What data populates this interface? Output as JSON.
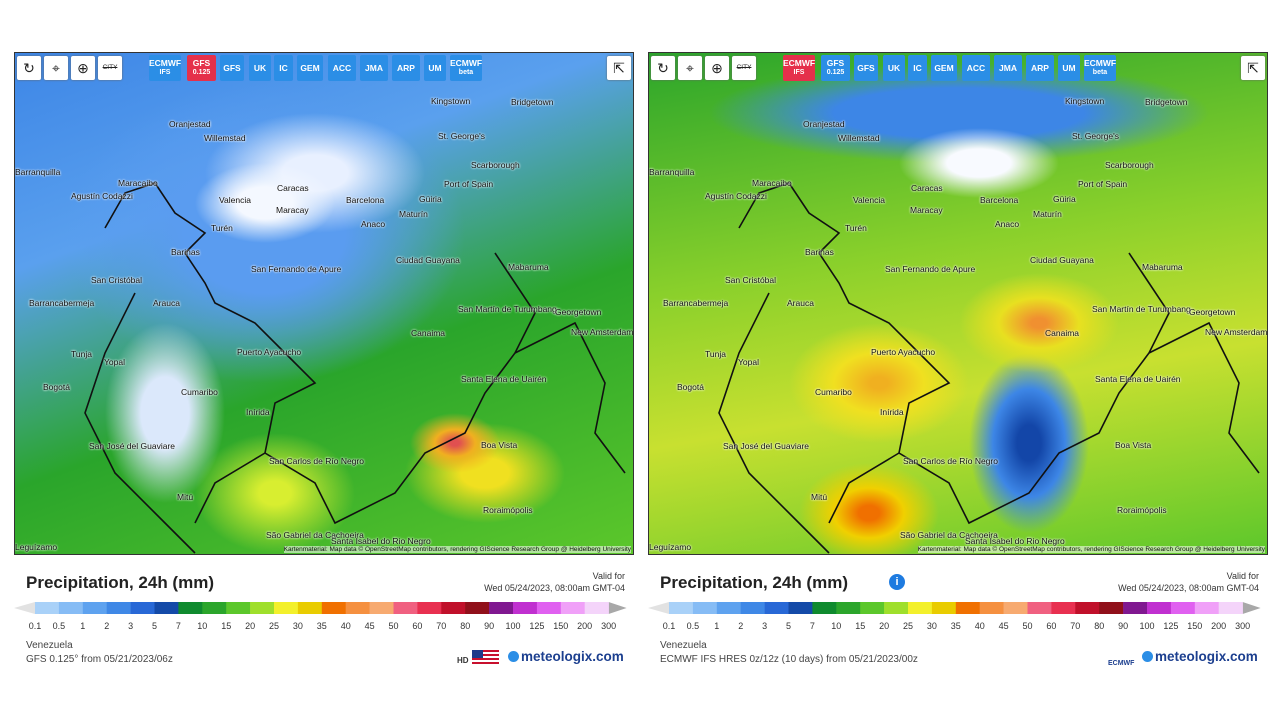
{
  "panels": [
    {
      "toolbar": {
        "city": "CITY",
        "models": [
          {
            "lines": [
              "ECMWF",
              "IFS"
            ],
            "active": false
          },
          {
            "lines": [
              "GFS",
              "0.125"
            ],
            "active": true
          },
          {
            "lines": [
              "GFS"
            ],
            "active": false
          },
          {
            "lines": [
              "UK"
            ],
            "active": false
          },
          {
            "lines": [
              "IC"
            ],
            "active": false
          },
          {
            "lines": [
              "GEM"
            ],
            "active": false
          },
          {
            "lines": [
              "ACC"
            ],
            "active": false
          },
          {
            "lines": [
              "JMA"
            ],
            "active": false
          },
          {
            "lines": [
              "ARP"
            ],
            "active": false
          },
          {
            "lines": [
              "UM"
            ],
            "active": false
          },
          {
            "lines": [
              "ECMWF",
              "beta"
            ],
            "active": false
          }
        ]
      },
      "cities": [
        "Oranjestad",
        "Willemstad",
        "Kingstown",
        "Bridgetown",
        "St. George's",
        "Scarborough",
        "Port of Spain",
        "Barranquilla",
        "Maracaibo",
        "Caracas",
        "Barcelona",
        "Güiria",
        "Agustín Codazzi",
        "Valencia",
        "Maracay",
        "Maturín",
        "Anaco",
        "Turén",
        "Barinas",
        "Ciudad Guayana",
        "Mabaruma",
        "San Fernando de Apure",
        "San Cristóbal",
        "Arauca",
        "Barrancabermeja",
        "San Martín de Turumbang",
        "Georgetown",
        "Canaima",
        "New Amsterdam",
        "Puerto Ayacucho",
        "Tunja",
        "Yopal",
        "Bogotá",
        "Cumaribo",
        "Santa Elena de Uairén",
        "Inírida",
        "Boa Vista",
        "San José del Guaviare",
        "San Carlos de Río Negro",
        "Mitú",
        "Roraimópolis",
        "São Gabriel da Cachoeira",
        "Santa Isabel do Rio Negro",
        "Leguízamo"
      ],
      "attribution": "Kartenmaterial: Map data © OpenStreetMap contributors, rendering GIScience Research Group @ Heidelberg University",
      "title": "Precipitation, 24h (mm)",
      "info_icon": false,
      "valid_label": "Valid for",
      "valid_time": "Wed 05/24/2023, 08:00am GMT-04",
      "region": "Venezuela",
      "model_info": "GFS 0.125° from 05/21/2023/06z",
      "badge": "HD",
      "brand": "meteologix.com"
    },
    {
      "toolbar": {
        "city": "CITY",
        "models": [
          {
            "lines": [
              "ECMWF",
              "IFS"
            ],
            "active": true
          },
          {
            "lines": [
              "GFS",
              "0.125"
            ],
            "active": false
          },
          {
            "lines": [
              "GFS"
            ],
            "active": false
          },
          {
            "lines": [
              "UK"
            ],
            "active": false
          },
          {
            "lines": [
              "IC"
            ],
            "active": false
          },
          {
            "lines": [
              "GEM"
            ],
            "active": false
          },
          {
            "lines": [
              "ACC"
            ],
            "active": false
          },
          {
            "lines": [
              "JMA"
            ],
            "active": false
          },
          {
            "lines": [
              "ARP"
            ],
            "active": false
          },
          {
            "lines": [
              "UM"
            ],
            "active": false
          },
          {
            "lines": [
              "ECMWF",
              "beta"
            ],
            "active": false
          }
        ]
      },
      "cities": [
        "Oranjestad",
        "Willemstad",
        "Kingstown",
        "Bridgetown",
        "St. George's",
        "Scarborough",
        "Port of Spain",
        "Barranquilla",
        "Maracaibo",
        "Caracas",
        "Barcelona",
        "Güiria",
        "Agustín Codazzi",
        "Valencia",
        "Maracay",
        "Maturín",
        "Anaco",
        "Turén",
        "Barinas",
        "Ciudad Guayana",
        "Mabaruma",
        "San Fernando de Apure",
        "San Cristóbal",
        "Arauca",
        "Barrancabermeja",
        "San Martín de Turumbang",
        "Georgetown",
        "Canaima",
        "New Amsterdam",
        "Puerto Ayacucho",
        "Tunja",
        "Yopal",
        "Bogotá",
        "Cumaribo",
        "Santa Elena de Uairén",
        "Inírida",
        "Boa Vista",
        "San José del Guaviare",
        "San Carlos de Río Negro",
        "Mitú",
        "Roraimópolis",
        "São Gabriel da Cachoeira",
        "Santa Isabel do Rio Negro",
        "Leguízamo"
      ],
      "attribution": "Kartenmaterial: Map data © OpenStreetMap contributors, rendering GIScience Research Group @ Heidelberg University",
      "title": "Precipitation, 24h (mm)",
      "info_icon": true,
      "valid_label": "Valid for",
      "valid_time": "Wed 05/24/2023, 08:00am GMT-04",
      "region": "Venezuela",
      "model_info": "ECMWF IFS HRES 0z/12z (10 days) from 05/21/2023/00z",
      "badge": "ECMWF",
      "brand": "meteologix.com"
    }
  ],
  "scale": {
    "labels": [
      "0.1",
      "0.5",
      "1",
      "2",
      "3",
      "5",
      "7",
      "10",
      "15",
      "20",
      "25",
      "30",
      "35",
      "40",
      "45",
      "50",
      "60",
      "70",
      "80",
      "90",
      "100",
      "125",
      "150",
      "200",
      "300"
    ],
    "colors": [
      "#a9d1f8",
      "#86bcf5",
      "#5ea2ef",
      "#3f88e6",
      "#2868d6",
      "#144aa8",
      "#0f8a2e",
      "#2ba52b",
      "#5cc72b",
      "#9fdf2b",
      "#f3f02b",
      "#e9cc00",
      "#f07000",
      "#f59040",
      "#f7aa70",
      "#f06080",
      "#e83050",
      "#c0102a",
      "#90101a",
      "#801890",
      "#c030d0",
      "#e060f0",
      "#f0a0f8",
      "#f4d4fa"
    ],
    "under_color": "#e2e2e2",
    "over_color": "#a8a8a8"
  }
}
